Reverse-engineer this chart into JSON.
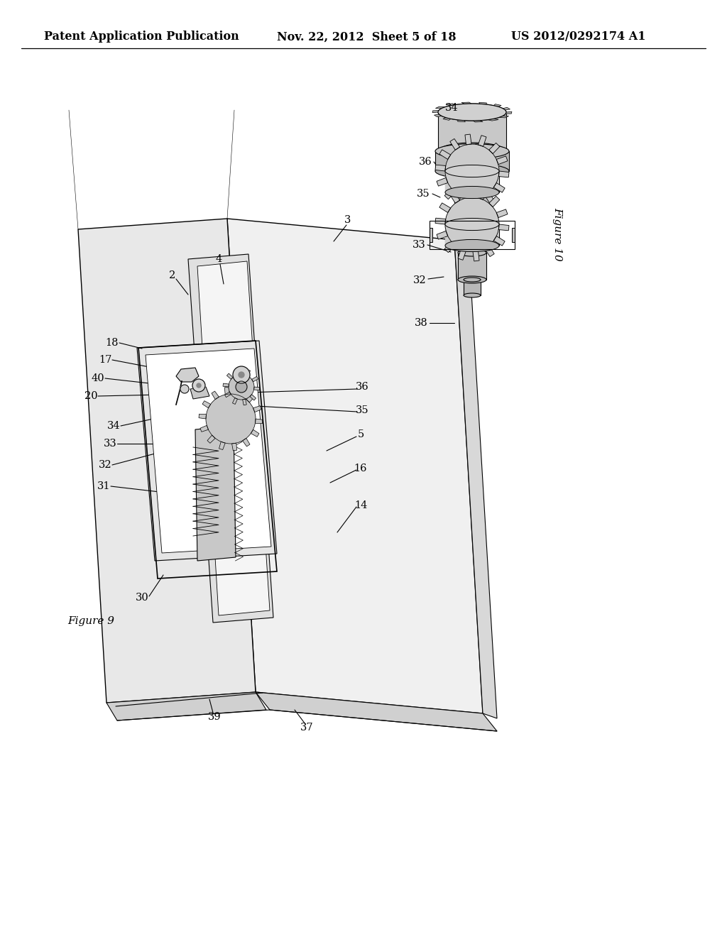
{
  "bg_color": "#ffffff",
  "header_left": "Patent Application Publication",
  "header_center": "Nov. 22, 2012  Sheet 5 of 18",
  "header_right": "US 2012/0292174 A1",
  "lc": "#000000",
  "lw": 0.8,
  "fig9_label": "Figure 9",
  "fig10_label": "Figure 10",
  "fs": 10.5,
  "header_fontsize": 11.5,
  "fig_label_fontsize": 11
}
